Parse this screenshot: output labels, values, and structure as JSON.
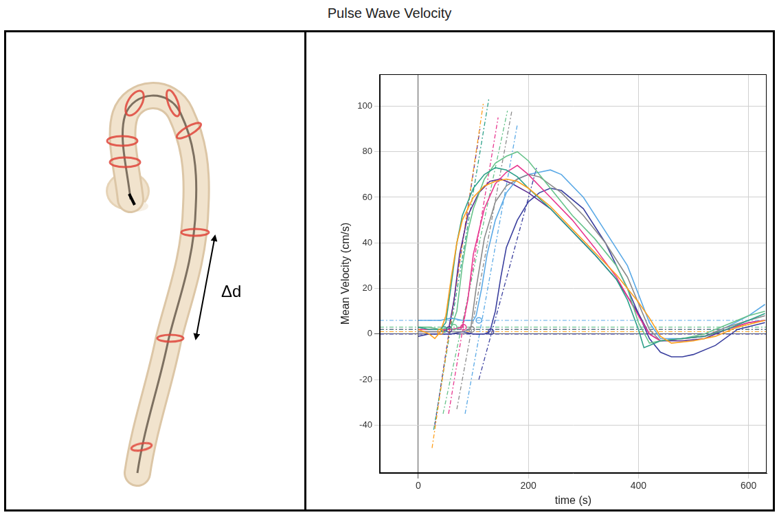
{
  "title": "Pulse Wave Velocity",
  "diagram": {
    "label": "Δd"
  },
  "chart_data": {
    "type": "line",
    "x_label": "time (s)",
    "y_label": "Mean Velocity (cm/s)",
    "xlim": [
      -70,
      633
    ],
    "ylim": [
      -61,
      114
    ],
    "xticks": [
      0,
      200,
      400,
      600
    ],
    "yticks": [
      -40,
      -20,
      0,
      20,
      40,
      60,
      80,
      100
    ],
    "grid": true,
    "series": [
      {
        "color": "#ff9f1c",
        "x": [
          0,
          10,
          20,
          30,
          40,
          50,
          60,
          70,
          80,
          100,
          120,
          140,
          160,
          180,
          200,
          240,
          280,
          320,
          360,
          400,
          420,
          440,
          460,
          500,
          540,
          580,
          630
        ],
        "values": [
          2,
          1,
          0,
          -2,
          1,
          8,
          25,
          40,
          50,
          60,
          65,
          67,
          68,
          67,
          64,
          56,
          46,
          36,
          26,
          14,
          7,
          -1,
          -4,
          -3,
          -1,
          3,
          6
        ],
        "tangent": [
          [
            25,
            -50
          ],
          [
            118,
            101
          ]
        ],
        "baseline": 1,
        "onset": [
          40,
          1
        ]
      },
      {
        "color": "#2ca089",
        "x": [
          0,
          20,
          40,
          50,
          60,
          70,
          80,
          100,
          120,
          140,
          160,
          180,
          200,
          240,
          280,
          320,
          360,
          380,
          400,
          410,
          420,
          440,
          480,
          520,
          560,
          600,
          630
        ],
        "values": [
          3,
          2,
          2,
          5,
          22,
          40,
          52,
          64,
          70,
          73,
          72,
          69,
          64,
          55,
          45,
          35,
          24,
          15,
          2,
          -6,
          -5,
          -3,
          -2,
          -1,
          2,
          6,
          9
        ],
        "tangent": [
          [
            28,
            -42
          ],
          [
            128,
            103
          ]
        ],
        "baseline": 2,
        "onset": [
          47,
          2
        ]
      },
      {
        "color": "#66c28a",
        "x": [
          0,
          20,
          40,
          60,
          70,
          80,
          90,
          100,
          120,
          140,
          160,
          180,
          200,
          240,
          280,
          320,
          360,
          380,
          400,
          420,
          440,
          480,
          520,
          560,
          600,
          630
        ],
        "values": [
          3,
          3,
          2,
          3,
          10,
          30,
          45,
          55,
          68,
          75,
          78,
          80,
          76,
          64,
          52,
          42,
          30,
          20,
          5,
          -4,
          -3,
          -2,
          0,
          4,
          8,
          10
        ],
        "tangent": [
          [
            45,
            -35
          ],
          [
            162,
            98
          ]
        ],
        "baseline": 3,
        "onset": [
          65,
          3
        ]
      },
      {
        "color": "#e8368f",
        "x": [
          0,
          20,
          40,
          60,
          80,
          90,
          100,
          120,
          140,
          160,
          180,
          200,
          240,
          280,
          320,
          360,
          400,
          420,
          440,
          480,
          520,
          560,
          600,
          630
        ],
        "values": [
          2,
          2,
          2,
          2,
          3,
          15,
          35,
          55,
          66,
          71,
          74,
          70,
          60,
          50,
          38,
          25,
          8,
          0,
          -3,
          -2,
          -1,
          2,
          5,
          6
        ],
        "tangent": [
          [
            55,
            -35
          ],
          [
            145,
            95
          ]
        ],
        "baseline": 2,
        "onset": [
          82,
          3
        ]
      },
      {
        "color": "#8a8a8a",
        "x": [
          0,
          20,
          40,
          60,
          80,
          95,
          105,
          120,
          140,
          160,
          180,
          200,
          220,
          260,
          300,
          340,
          380,
          420,
          440,
          480,
          520,
          560,
          600,
          630
        ],
        "values": [
          1,
          1,
          1,
          1,
          1,
          2,
          20,
          42,
          58,
          65,
          68,
          70,
          69,
          62,
          52,
          40,
          25,
          2,
          -3,
          -2,
          -1,
          3,
          6,
          8
        ],
        "tangent": [
          [
            70,
            -33
          ],
          [
            170,
            98
          ]
        ],
        "baseline": 1,
        "onset": [
          97,
          2
        ]
      },
      {
        "color": "#5aa9e6",
        "x": [
          0,
          20,
          40,
          60,
          80,
          100,
          105,
          115,
          125,
          140,
          160,
          180,
          200,
          220,
          240,
          260,
          300,
          340,
          380,
          420,
          440,
          480,
          520,
          560,
          600,
          630
        ],
        "values": [
          6,
          6,
          6,
          7,
          6,
          6,
          8,
          20,
          35,
          50,
          62,
          68,
          70,
          71,
          72,
          70,
          60,
          45,
          30,
          5,
          -2,
          -2,
          -1,
          3,
          8,
          13
        ],
        "tangent": [
          [
            85,
            -35
          ],
          [
            180,
            92
          ]
        ],
        "baseline": 6,
        "onset": [
          110,
          6
        ]
      },
      {
        "color": "#3a3f9e",
        "x": [
          0,
          20,
          40,
          60,
          80,
          100,
          120,
          130,
          140,
          150,
          160,
          180,
          200,
          220,
          240,
          260,
          300,
          340,
          380,
          420,
          440,
          460,
          480,
          500,
          540,
          580,
          630
        ],
        "values": [
          -1,
          0,
          0,
          0,
          1,
          0,
          0,
          1,
          10,
          25,
          38,
          50,
          58,
          62,
          64,
          63,
          55,
          40,
          20,
          -2,
          -8,
          -10,
          -10,
          -9,
          -5,
          2,
          5
        ],
        "tangent": [
          [
            110,
            -20
          ],
          [
            215,
            73
          ]
        ],
        "baseline": 0,
        "onset": [
          132,
          1
        ]
      },
      {
        "color": "#5c2d91",
        "x": [
          0,
          20,
          40,
          55,
          65,
          75,
          90,
          110,
          130,
          150,
          170,
          200,
          240,
          280,
          320,
          360,
          400,
          420,
          440,
          480,
          520,
          560,
          600,
          630
        ],
        "values": [
          1,
          1,
          1,
          2,
          15,
          35,
          52,
          62,
          67,
          68,
          66,
          62,
          55,
          45,
          35,
          24,
          9,
          0,
          -3,
          -3,
          -2,
          2,
          5,
          6
        ],
        "tangent": [
          [
            30,
            -40
          ],
          [
            112,
            90
          ]
        ],
        "baseline": 2,
        "onset": [
          56,
          2
        ]
      }
    ]
  }
}
